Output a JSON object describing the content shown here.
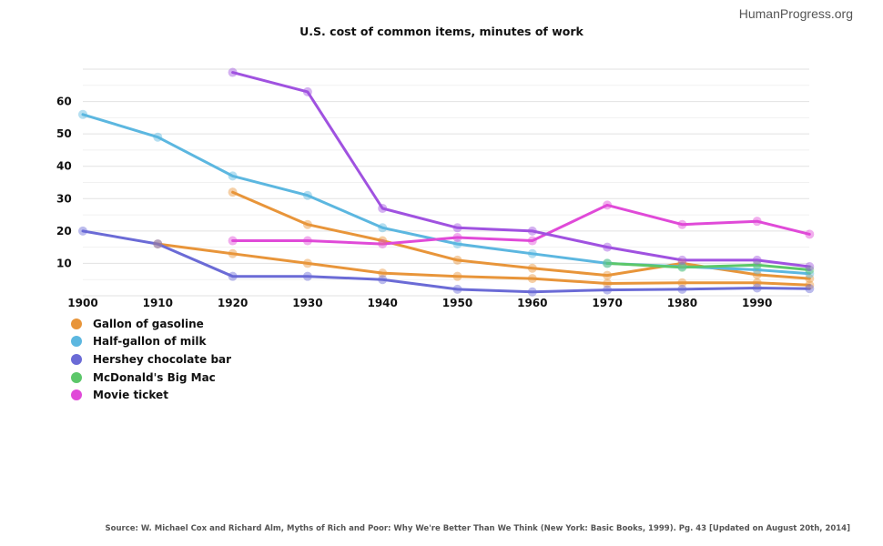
{
  "brand": "HumanProgress.org",
  "source": "Source: W. Michael Cox and Richard Alm, Myths of Rich and Poor: Why We're Better Than We Think (New York: Basic Books, 1999). Pg. 43 [Updated on August 20th, 2014]",
  "chart_data": {
    "type": "line",
    "title": "U.S. cost of common items, minutes of work",
    "xlabel": "",
    "ylabel": "",
    "xlim": [
      1900,
      1997
    ],
    "ylim": [
      0,
      70
    ],
    "x_ticks": [
      1900,
      1910,
      1920,
      1930,
      1940,
      1950,
      1960,
      1970,
      1980,
      1990
    ],
    "y_ticks": [
      10,
      20,
      30,
      40,
      50,
      60
    ],
    "grid": true,
    "legend_position": "bottom-left",
    "series": [
      {
        "name": "Gallon of gasoline",
        "color": "#e8953a",
        "lines": [
          [
            [
              1920,
              32
            ],
            [
              1930,
              22
            ],
            [
              1940,
              17
            ],
            [
              1950,
              11
            ],
            [
              1960,
              8.5
            ],
            [
              1970,
              6.3
            ],
            [
              1980,
              10
            ],
            [
              1990,
              6.5
            ],
            [
              1997,
              5.3
            ]
          ],
          [
            [
              1910,
              16
            ],
            [
              1920,
              13
            ],
            [
              1930,
              10
            ],
            [
              1940,
              7
            ],
            [
              1950,
              6
            ],
            [
              1960,
              5.3
            ],
            [
              1970,
              3.8
            ],
            [
              1980,
              4
            ],
            [
              1990,
              4
            ],
            [
              1997,
              3.3
            ]
          ]
        ]
      },
      {
        "name": "Half-gallon of milk",
        "color": "#5cb7e0",
        "lines": [
          [
            [
              1900,
              56
            ],
            [
              1910,
              49
            ],
            [
              1920,
              37
            ],
            [
              1930,
              31
            ],
            [
              1940,
              21
            ],
            [
              1950,
              16
            ],
            [
              1960,
              13
            ],
            [
              1970,
              10
            ],
            [
              1980,
              9
            ],
            [
              1990,
              8
            ],
            [
              1997,
              6.8
            ]
          ]
        ]
      },
      {
        "name": "Hershey chocolate bar",
        "color": "#6b6bd6",
        "lines": [
          [
            [
              1900,
              20
            ],
            [
              1910,
              16
            ],
            [
              1920,
              6
            ],
            [
              1930,
              6
            ],
            [
              1940,
              5
            ],
            [
              1950,
              2
            ],
            [
              1960,
              1.2
            ],
            [
              1970,
              1.8
            ],
            [
              1980,
              2
            ],
            [
              1990,
              2.4
            ],
            [
              1997,
              2.2
            ]
          ]
        ]
      },
      {
        "name": "McDonald's Big Mac",
        "color": "#5cc76a",
        "lines": [
          [
            [
              1970,
              10
            ],
            [
              1980,
              8.8
            ],
            [
              1990,
              9.5
            ],
            [
              1997,
              8
            ]
          ]
        ]
      },
      {
        "name": "Movie ticket",
        "color": "#e04ad8",
        "lines": [
          [
            [
              1920,
              17
            ],
            [
              1930,
              17
            ],
            [
              1940,
              16
            ],
            [
              1950,
              18
            ],
            [
              1960,
              17
            ],
            [
              1970,
              28
            ],
            [
              1980,
              22
            ],
            [
              1990,
              23
            ],
            [
              1997,
              19
            ]
          ]
        ]
      },
      {
        "name": "",
        "color": "#a052e0",
        "lines": [
          [
            [
              1920,
              69
            ],
            [
              1930,
              63
            ],
            [
              1940,
              27
            ],
            [
              1950,
              21
            ],
            [
              1960,
              20
            ],
            [
              1970,
              15
            ],
            [
              1980,
              11
            ],
            [
              1990,
              11
            ],
            [
              1997,
              9
            ]
          ]
        ]
      }
    ]
  }
}
